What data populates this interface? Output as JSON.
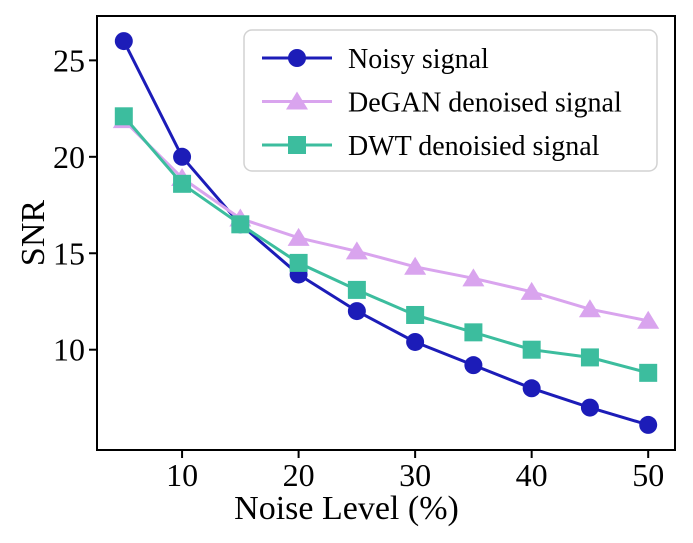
{
  "figure": {
    "background": "#ffffff",
    "frame_color": "#000000",
    "text_color": "#000000",
    "legend_border_color": "#d2d2d2",
    "legend_background": "#ffffff"
  },
  "chart_data": {
    "type": "line",
    "title": "",
    "xlabel": "Noise Level (%)",
    "ylabel": "SNR",
    "x": [
      5,
      10,
      15,
      20,
      25,
      30,
      35,
      40,
      45,
      50
    ],
    "series": [
      {
        "name": "Noisy signal",
        "color": "#1c1cb8",
        "marker": "circle",
        "values": [
          26.0,
          20.0,
          16.5,
          13.9,
          12.0,
          10.4,
          9.2,
          8.0,
          7.0,
          6.1
        ]
      },
      {
        "name": "DeGAN denoised signal",
        "color": "#d9a4ee",
        "marker": "triangle",
        "values": [
          21.9,
          18.9,
          16.8,
          15.8,
          15.1,
          14.3,
          13.7,
          13.0,
          12.1,
          11.5
        ]
      },
      {
        "name": "DWT denoisied signal",
        "color": "#3cbd9e",
        "marker": "square",
        "values": [
          22.1,
          18.6,
          16.5,
          14.5,
          13.1,
          11.8,
          10.9,
          10.0,
          9.6,
          8.8
        ]
      }
    ],
    "x_ticks": [
      10,
      20,
      30,
      40,
      50
    ],
    "y_ticks": [
      10,
      15,
      20,
      25
    ],
    "xlim": [
      2.7,
      52.3
    ],
    "ylim": [
      4.8,
      27.3
    ],
    "grid": false,
    "legend_position": "upper right"
  }
}
